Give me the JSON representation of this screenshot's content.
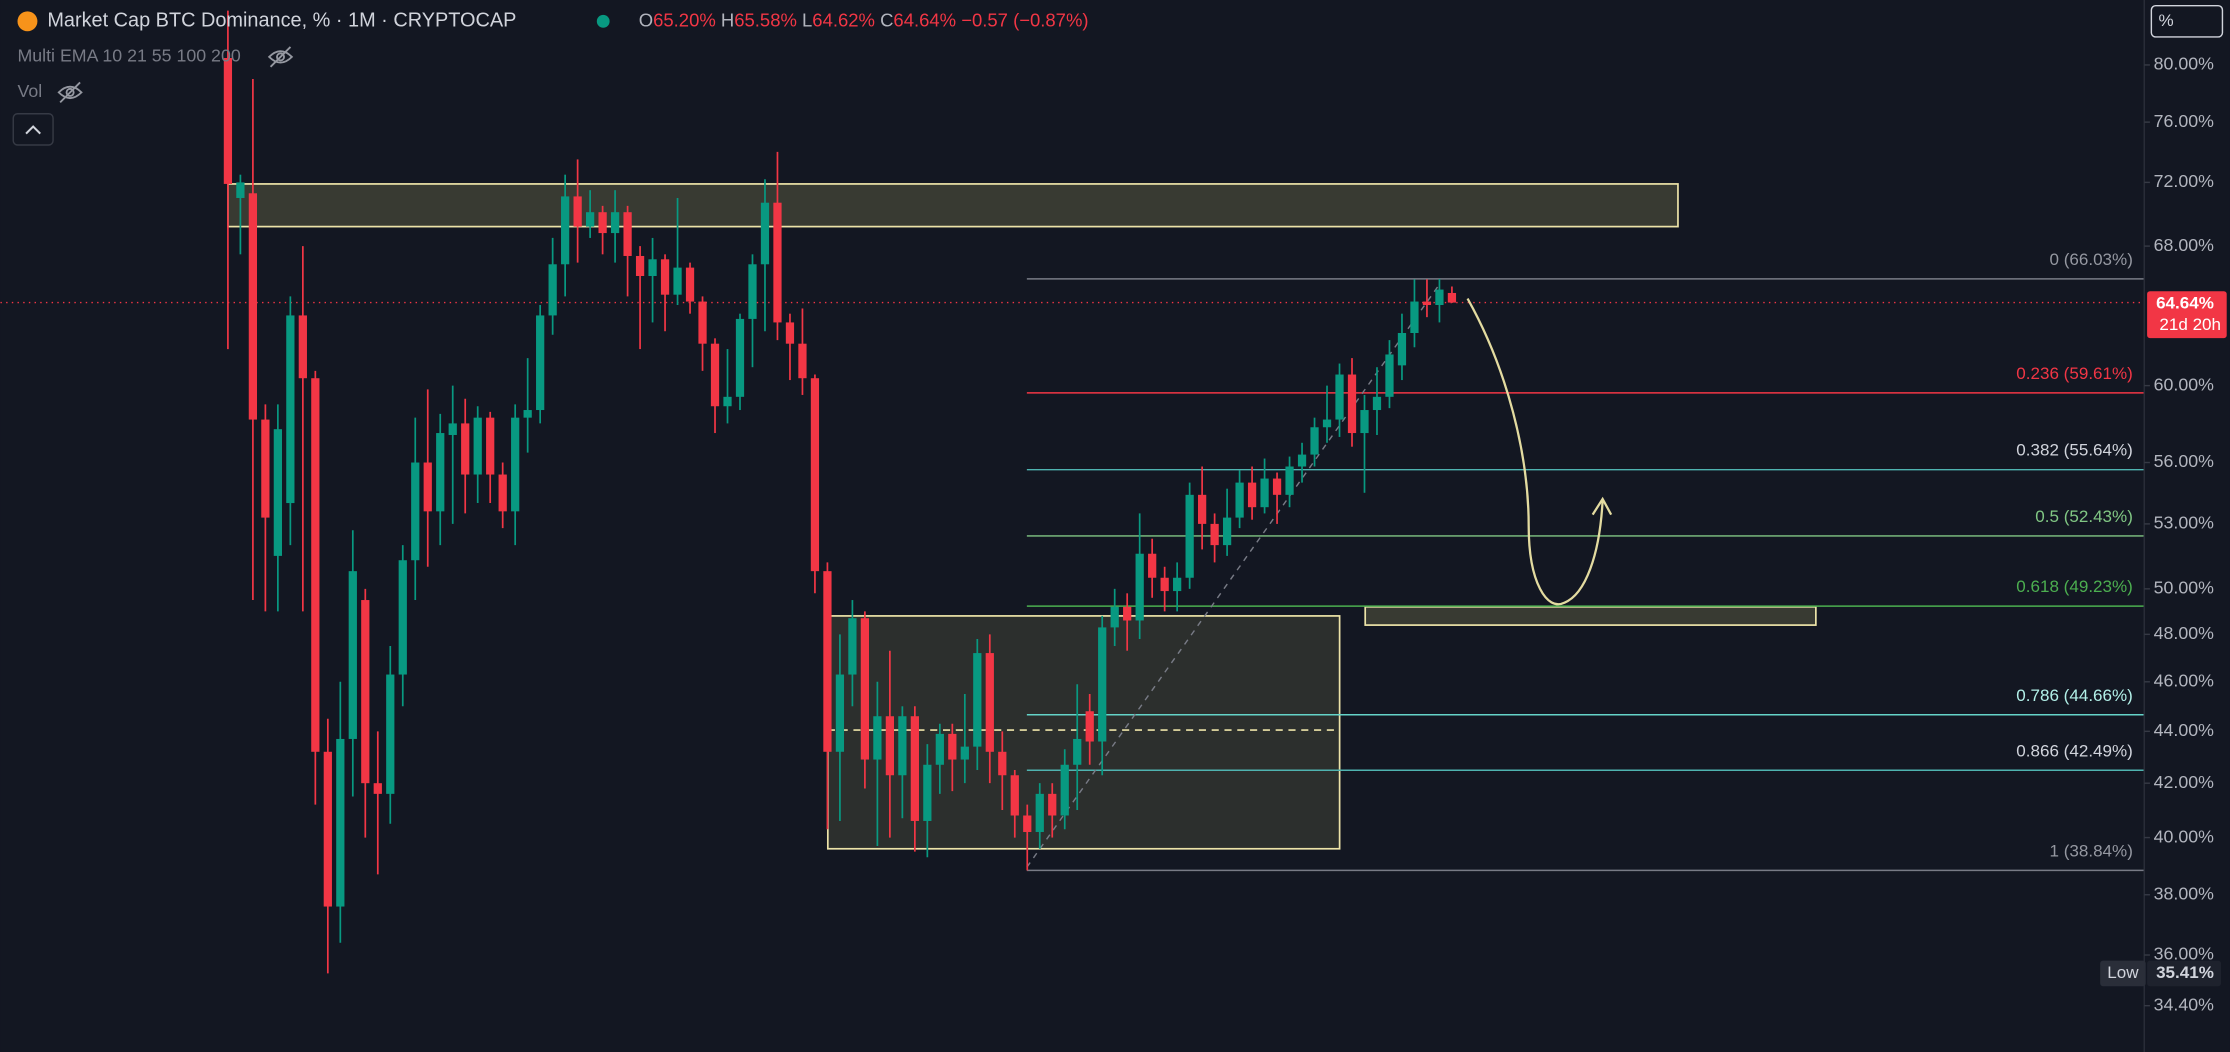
{
  "header": {
    "title": "Market Cap BTC Dominance, % · 1M · CRYPTOCAP",
    "ohlc": [
      {
        "key": "O",
        "value": "65.20%"
      },
      {
        "key": "H",
        "value": "65.58%"
      },
      {
        "key": "L",
        "value": "64.62%"
      },
      {
        "key": "C",
        "value": "64.64%"
      }
    ],
    "change": "−0.57 (−0.87%)"
  },
  "indicators": [
    "Multi EMA 10 21 55 100 200",
    "Vol"
  ],
  "chart_data": {
    "type": "candlestick",
    "open": [
      80.5,
      71.0,
      71.3,
      58.2,
      51.5,
      54.0,
      63.9,
      60.4,
      43.2,
      37.6,
      43.7,
      49.5,
      42.0,
      41.6,
      46.3,
      51.3,
      56.0,
      53.6,
      57.4,
      58.0,
      55.4,
      58.3,
      55.4,
      53.6,
      58.3,
      58.7,
      63.9,
      66.9,
      71.1,
      69.2,
      70.1,
      68.8,
      70.1,
      67.4,
      66.2,
      67.2,
      65.1,
      66.7,
      64.7,
      62.3,
      58.9,
      59.4,
      63.7,
      66.9,
      70.7,
      63.5,
      62.3,
      60.4,
      50.8,
      43.2,
      46.3,
      48.7,
      42.9,
      44.6,
      42.3,
      44.6,
      40.6,
      42.7,
      43.9,
      42.9,
      43.4,
      47.2,
      43.2,
      42.3,
      40.8,
      40.2,
      41.6,
      40.8,
      42.7,
      44.8,
      43.6,
      48.3,
      49.2,
      48.6,
      51.6,
      50.5,
      49.9,
      50.5,
      54.4,
      53.0,
      52.0,
      53.3,
      55.0,
      53.8,
      55.2,
      54.4,
      55.8,
      56.4,
      57.8,
      58.2,
      60.6,
      57.5,
      58.7,
      59.4,
      61.1,
      62.9,
      64.7,
      64.5,
      65.2
    ],
    "high": [
      84,
      72.5,
      79,
      59,
      59,
      65,
      68,
      60.8,
      44.5,
      46,
      52.7,
      50,
      44,
      47.5,
      52,
      58.3,
      59.8,
      58.5,
      60,
      59.3,
      58.9,
      58.6,
      56,
      59,
      61.5,
      64.5,
      68.5,
      72.5,
      73.5,
      71.5,
      70.5,
      71.5,
      70.5,
      68,
      68.5,
      67.5,
      71,
      67,
      65,
      62.6,
      62,
      64,
      67.5,
      72.2,
      74,
      64,
      64.3,
      60.6,
      51.2,
      48,
      49.5,
      49,
      46,
      47.3,
      45,
      45,
      43.5,
      44.3,
      44.3,
      45.5,
      47.8,
      48,
      44,
      42.5,
      41.2,
      42,
      42,
      43.3,
      45.9,
      45.5,
      48.8,
      50,
      49.8,
      53.5,
      52.3,
      51,
      51.2,
      55,
      55.8,
      53.5,
      54.7,
      55.6,
      55.8,
      56.2,
      55.5,
      56.3,
      57,
      58.3,
      60,
      61.2,
      61.5,
      59.5,
      61,
      62.5,
      64,
      66,
      66,
      66.03,
      65.58
    ],
    "low": [
      62,
      67.5,
      49.5,
      49,
      49,
      52,
      49,
      41.2,
      35.41,
      36.4,
      41.5,
      40,
      38.7,
      40.5,
      45,
      49.5,
      51,
      52,
      53,
      53.5,
      54,
      54,
      52.8,
      52,
      56.5,
      58,
      62.8,
      65,
      67,
      68.5,
      67.5,
      67,
      65,
      62,
      63.5,
      63,
      64.5,
      64,
      60.8,
      57.5,
      58,
      58.7,
      61,
      63,
      62.5,
      60.3,
      59.5,
      49.8,
      40.3,
      40.6,
      45,
      41.8,
      39.7,
      40,
      40.7,
      39.5,
      39.3,
      41.6,
      41.7,
      42,
      42.5,
      42,
      41,
      40,
      38.84,
      39.6,
      40,
      40.3,
      41,
      42.7,
      42.3,
      47.5,
      47.3,
      47.8,
      49.6,
      49,
      49,
      50,
      51.8,
      51.2,
      51.5,
      52.8,
      53.2,
      53.5,
      53,
      53.8,
      55,
      55.8,
      57,
      57.3,
      56.8,
      54.5,
      57.4,
      58.8,
      60.3,
      62.1,
      63.8,
      63.5,
      64.62
    ],
    "close": [
      71.9,
      72.0,
      58.2,
      53.3,
      57.7,
      63.9,
      60.4,
      43.2,
      37.6,
      43.7,
      50.8,
      42.0,
      41.6,
      46.3,
      51.3,
      56.0,
      53.6,
      57.5,
      58.0,
      55.4,
      58.3,
      55.4,
      53.6,
      58.3,
      58.7,
      63.9,
      66.9,
      71.1,
      69.2,
      70.1,
      68.8,
      70.1,
      67.4,
      66.2,
      67.2,
      65.1,
      66.7,
      64.7,
      62.3,
      58.9,
      59.4,
      63.7,
      66.9,
      70.7,
      63.5,
      62.3,
      60.4,
      50.8,
      43.2,
      46.3,
      48.7,
      42.9,
      44.6,
      42.3,
      44.6,
      40.6,
      42.7,
      43.9,
      42.9,
      43.4,
      47.2,
      43.2,
      42.3,
      40.8,
      40.2,
      41.6,
      40.8,
      42.7,
      43.7,
      43.6,
      48.3,
      49.2,
      48.6,
      51.6,
      50.5,
      49.9,
      50.5,
      54.4,
      53.0,
      52.0,
      53.3,
      55.0,
      53.8,
      55.2,
      54.4,
      55.8,
      56.4,
      57.8,
      58.2,
      60.6,
      57.5,
      58.7,
      59.4,
      61.7,
      62.9,
      64.7,
      64.5,
      65.4,
      64.64
    ],
    "up_color": "#089981",
    "down_color": "#f23645",
    "log_scale": true,
    "ylim": [
      33.0,
      84.8
    ],
    "yticks": [
      {
        "value": 80,
        "label": "80.00%"
      },
      {
        "value": 76,
        "label": "76.00%"
      },
      {
        "value": 72,
        "label": "72.00%"
      },
      {
        "value": 68,
        "label": "68.00%"
      },
      {
        "value": 60,
        "label": "60.00%"
      },
      {
        "value": 56,
        "label": "56.00%"
      },
      {
        "value": 53,
        "label": "53.00%"
      },
      {
        "value": 50,
        "label": "50.00%"
      },
      {
        "value": 48,
        "label": "48.00%"
      },
      {
        "value": 46,
        "label": "46.00%"
      },
      {
        "value": 44,
        "label": "44.00%"
      },
      {
        "value": 42,
        "label": "42.00%"
      },
      {
        "value": 40,
        "label": "40.00%"
      },
      {
        "value": 38,
        "label": "38.00%"
      },
      {
        "value": 36,
        "label": "36.00%"
      },
      {
        "value": 34.4,
        "label": "34.40%"
      }
    ],
    "unit_label": "%",
    "last_price": {
      "value": 64.64,
      "label": "64.64%",
      "countdown": "21d 20h"
    },
    "low_marker": {
      "title": "Low",
      "value": 35.41,
      "label": "35.41%"
    },
    "fib": {
      "values": [
        66.03,
        59.61,
        55.64,
        52.43,
        49.23,
        44.66,
        42.49,
        38.84
      ],
      "value_labels": [
        "0 (66.03%)",
        "0.236 (59.61%)",
        "0.382 (55.64%)",
        "0.5 (52.43%)",
        "0.618 (49.23%)",
        "0.786 (44.66%)",
        "0.866 (42.49%)",
        "1 (38.84%)"
      ],
      "colors": [
        "#787b86",
        "#f23645",
        "#4fb3b0",
        "#81c784",
        "#4caf50",
        "#64d3c8",
        "#4fb3b0",
        "#787b86"
      ],
      "label_colors": [
        "#9598a1",
        "#f23645",
        "#d1d4dc",
        "#81c784",
        "#4caf50",
        "#b2f0e8",
        "#d1d4dc",
        "#9598a1"
      ]
    },
    "zones": [
      {
        "top": 71.9,
        "bottom": 69.2
      },
      {
        "top": 48.8,
        "bottom": 39.6,
        "mid": 44.05
      },
      {
        "top": 49.2,
        "bottom": 48.4
      }
    ]
  }
}
